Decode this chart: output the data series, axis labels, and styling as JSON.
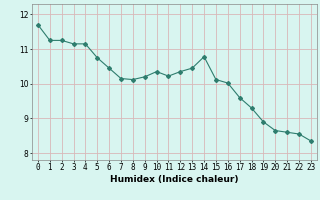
{
  "x": [
    0,
    1,
    2,
    3,
    4,
    5,
    6,
    7,
    8,
    9,
    10,
    11,
    12,
    13,
    14,
    15,
    16,
    17,
    18,
    19,
    20,
    21,
    22,
    23
  ],
  "y": [
    11.7,
    11.25,
    11.25,
    11.15,
    11.15,
    10.75,
    10.45,
    10.15,
    10.12,
    10.2,
    10.35,
    10.22,
    10.35,
    10.45,
    10.78,
    10.12,
    10.02,
    9.6,
    9.3,
    8.9,
    8.65,
    8.6,
    8.55,
    8.35
  ],
  "line_color": "#2e7d6e",
  "bg_color": "#d8f5f0",
  "grid_color_v": "#d8b8b8",
  "grid_color_h": "#d8b8b8",
  "axis_color": "#888888",
  "xlabel": "Humidex (Indice chaleur)",
  "ylim": [
    7.8,
    12.3
  ],
  "xlim": [
    -0.5,
    23.5
  ],
  "yticks": [
    8,
    9,
    10,
    11,
    12
  ],
  "xtick_labels": [
    "0",
    "1",
    "2",
    "3",
    "4",
    "5",
    "6",
    "7",
    "8",
    "9",
    "10",
    "11",
    "12",
    "13",
    "14",
    "15",
    "16",
    "17",
    "18",
    "19",
    "20",
    "21",
    "22",
    "23"
  ],
  "label_fontsize": 6.5,
  "tick_fontsize": 5.5
}
